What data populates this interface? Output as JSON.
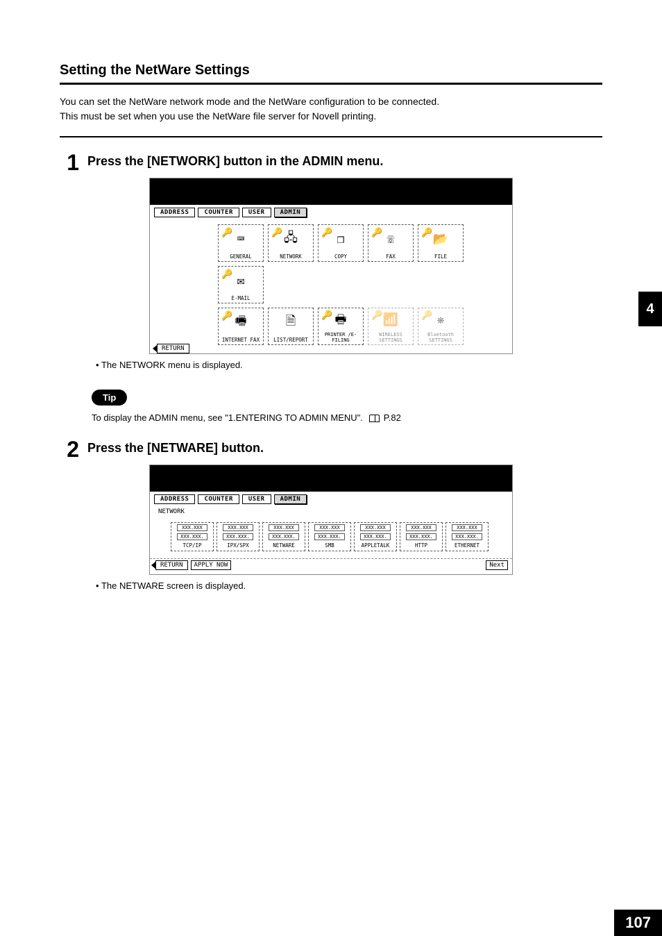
{
  "section_title": "Setting the NetWare Settings",
  "intro_line1": "You can set the NetWare network mode and the NetWare configuration to be connected.",
  "intro_line2": "This must be set when you use the NetWare file server for Novell printing.",
  "side_tab": "4",
  "page_number": "107",
  "step1": {
    "num": "1",
    "heading": "Press the [NETWORK] button in the ADMIN menu.",
    "note": "The NETWORK menu is displayed."
  },
  "tip": {
    "label": "Tip",
    "text_before": "To display the ADMIN menu, see \"1.ENTERING TO ADMIN MENU\".",
    "page_ref": "P.82"
  },
  "step2": {
    "num": "2",
    "heading": "Press the [NETWARE] button.",
    "note": "The NETWARE screen is displayed."
  },
  "tabs": {
    "address": "ADDRESS",
    "counter": "COUNTER",
    "user": "USER",
    "admin": "ADMIN"
  },
  "screen1": {
    "buttons_row1": [
      {
        "label": "GENERAL",
        "icon": "⌨"
      },
      {
        "label": "NETWORK",
        "icon": "🖧"
      },
      {
        "label": "COPY",
        "icon": "❐"
      },
      {
        "label": "FAX",
        "icon": "☏"
      },
      {
        "label": "FILE",
        "icon": "📂"
      },
      {
        "label": "E-MAIL",
        "icon": "✉"
      }
    ],
    "buttons_row2": [
      {
        "label": "INTERNET FAX",
        "icon": "🖷",
        "keyed": true
      },
      {
        "label": "LIST/REPORT",
        "icon": "🗎",
        "keyed": false
      },
      {
        "label": "PRINTER /E-FILING",
        "icon": "🖶",
        "keyed": true,
        "twoline": true
      },
      {
        "label": "WIRELESS SETTINGS",
        "icon": "📶",
        "dimmed": true,
        "twoline": true
      },
      {
        "label": "Bluetooth SETTINGS",
        "icon": "❋",
        "dimmed": true,
        "twoline": true
      }
    ],
    "return": "RETURN"
  },
  "screen2": {
    "subtitle": "NETWORK",
    "placeholder1": "XXX.XXX",
    "placeholder2": "XXX.XXX.",
    "buttons": [
      "TCP/IP",
      "IPX/SPX",
      "NETWARE",
      "SMB",
      "APPLETALK",
      "HTTP",
      "ETHERNET"
    ],
    "return": "RETURN",
    "apply": "APPLY NOW",
    "next": "Next"
  }
}
